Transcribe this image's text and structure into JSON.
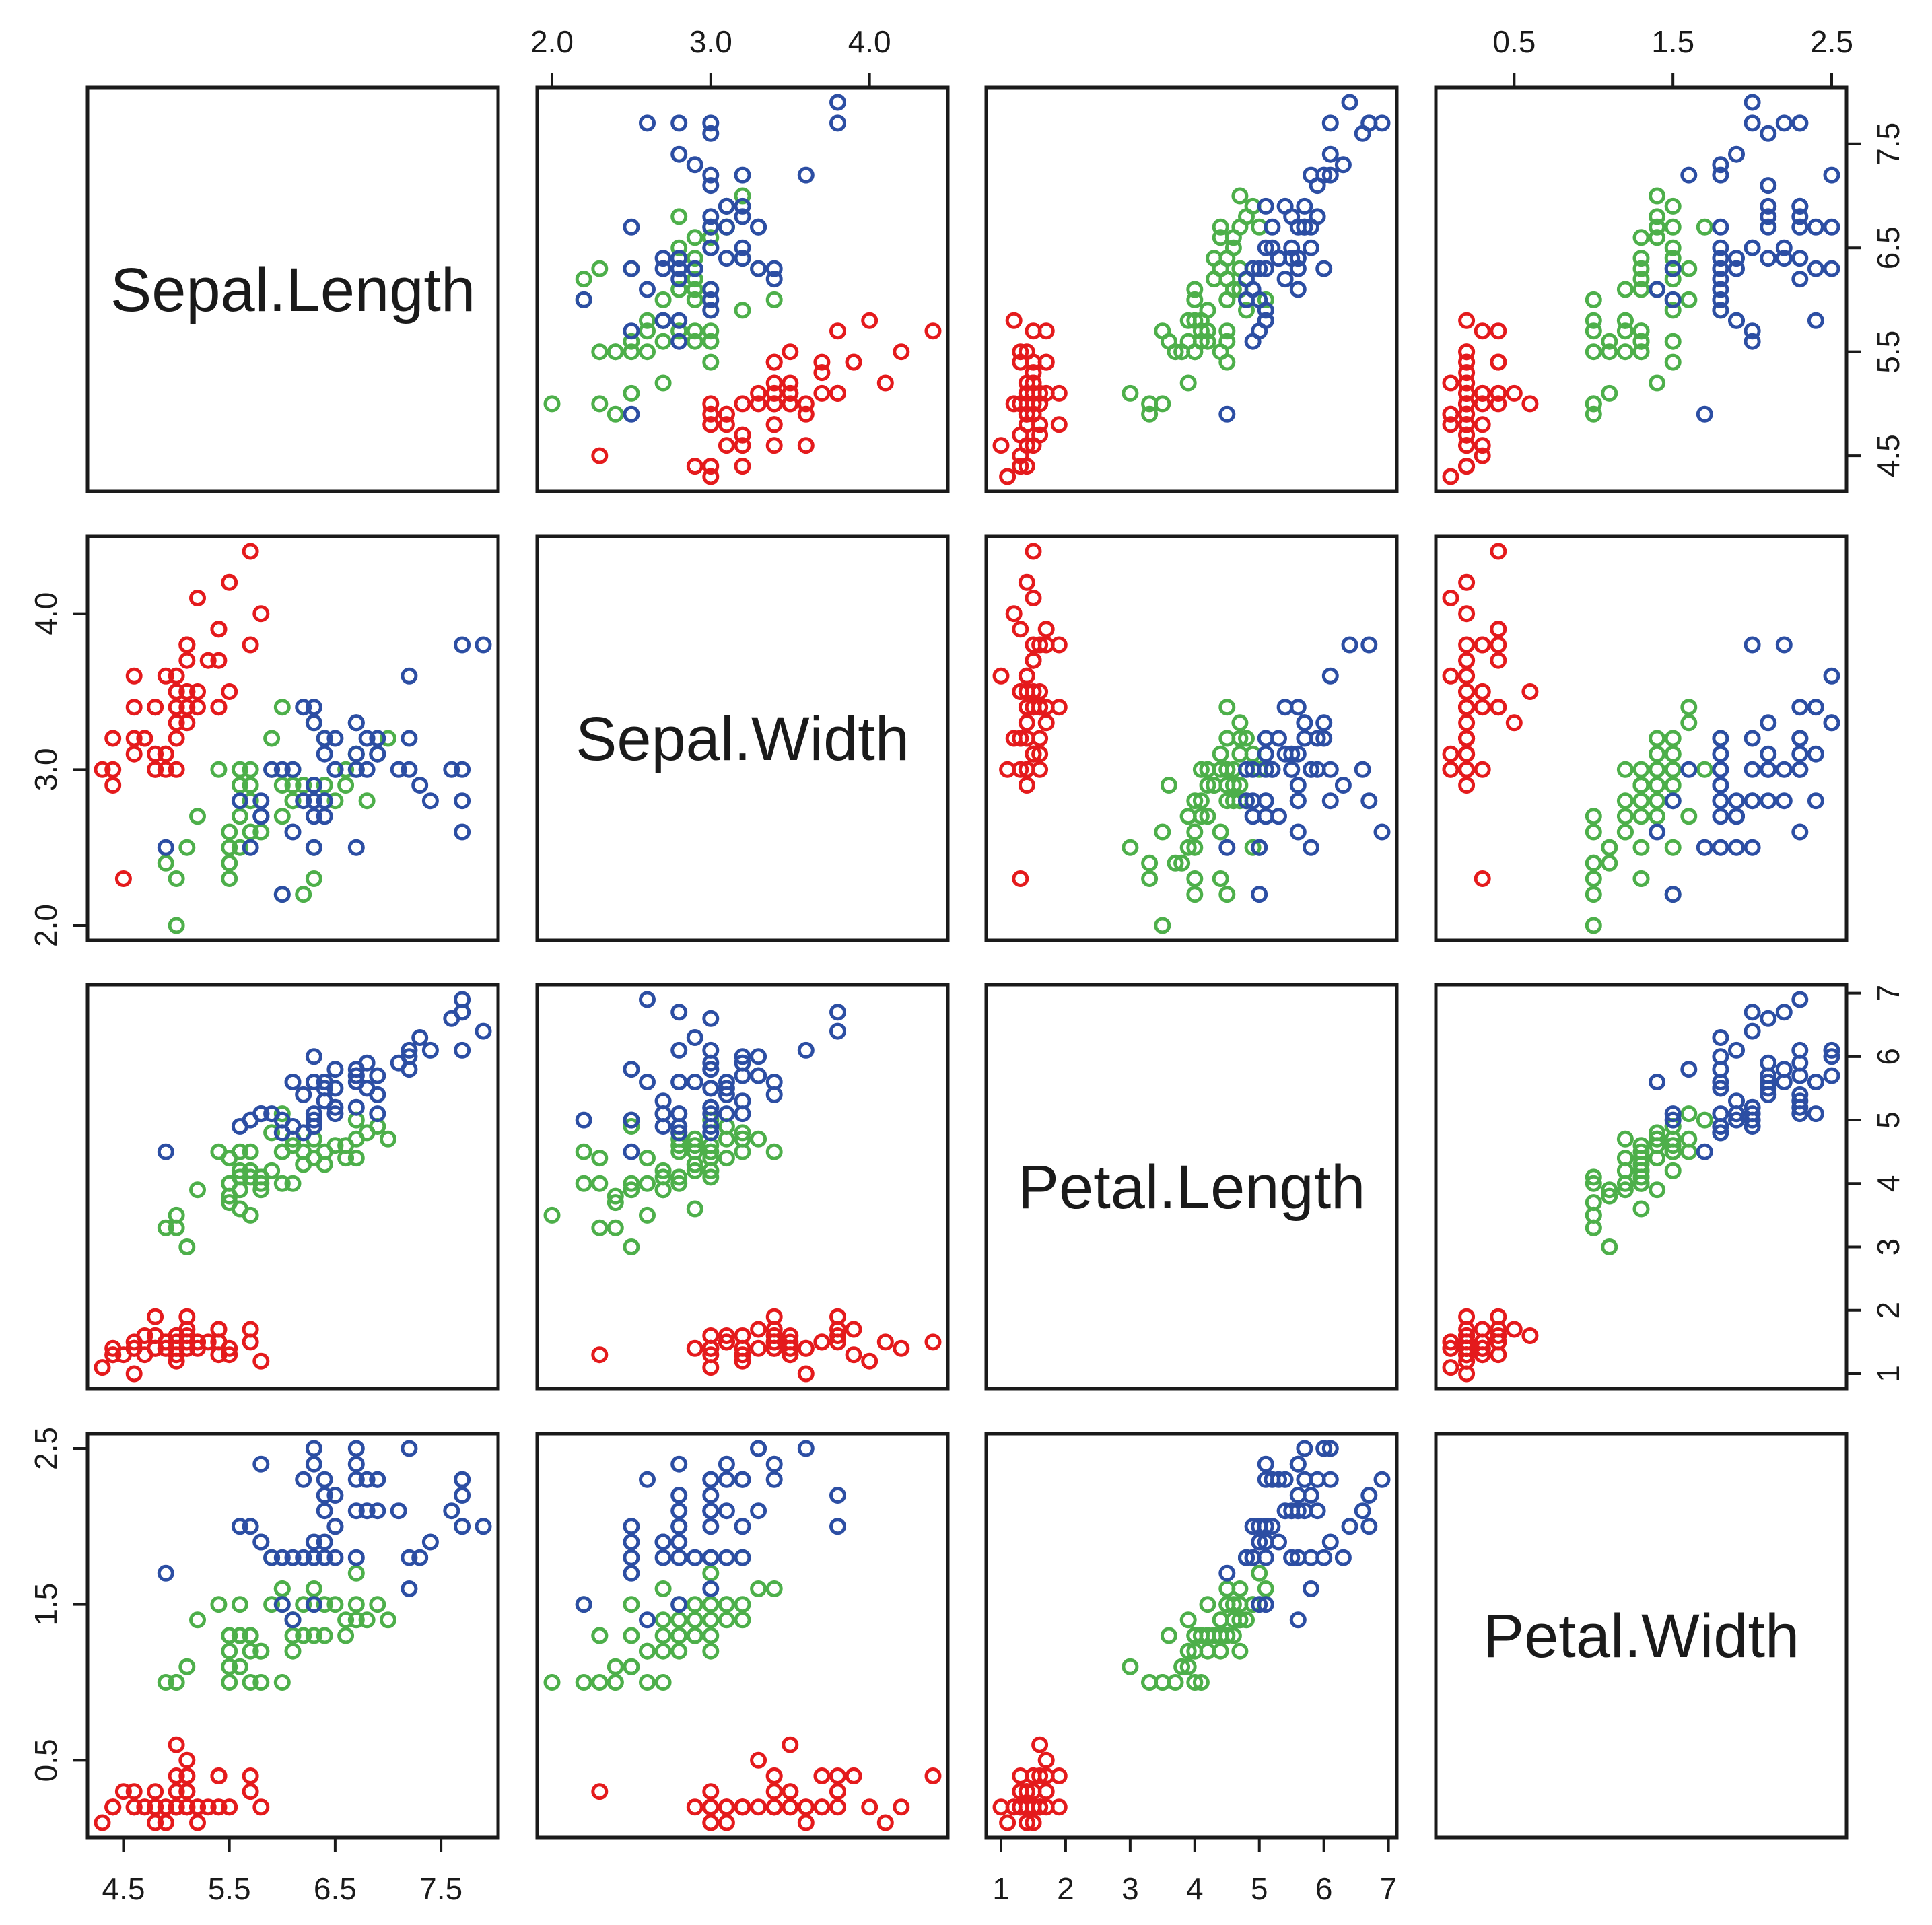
{
  "chart_data": {
    "type": "scatter",
    "title": "",
    "variables": [
      "Sepal.Length",
      "Sepal.Width",
      "Petal.Length",
      "Petal.Width"
    ],
    "ranges": {
      "Sepal.Length": [
        4.3,
        7.9
      ],
      "Sepal.Width": [
        2.0,
        4.4
      ],
      "Petal.Length": [
        1.0,
        6.9
      ],
      "Petal.Width": [
        0.1,
        2.5
      ]
    },
    "ticks": {
      "Sepal.Length": [
        4.5,
        5.5,
        6.5,
        7.5
      ],
      "Sepal.Width": [
        2.0,
        3.0,
        4.0
      ],
      "Petal.Length": [
        1,
        2,
        3,
        4,
        5,
        6,
        7
      ],
      "Petal.Width": [
        0.5,
        1.5,
        2.5
      ]
    },
    "tick_labels": {
      "Sepal.Length": [
        "4.5",
        "5.5",
        "6.5",
        "7.5"
      ],
      "Sepal.Width": [
        "2.0",
        "3.0",
        "4.0"
      ],
      "Petal.Length": [
        "1",
        "2",
        "3",
        "4",
        "5",
        "6",
        "7"
      ],
      "Petal.Width": [
        "0.5",
        "1.5",
        "2.5"
      ]
    },
    "groups": [
      {
        "color": "#e41a1c",
        "points": [
          [
            5.1,
            3.5,
            1.4,
            0.2
          ],
          [
            4.9,
            3.0,
            1.4,
            0.2
          ],
          [
            4.7,
            3.2,
            1.3,
            0.2
          ],
          [
            4.6,
            3.1,
            1.5,
            0.2
          ],
          [
            5.0,
            3.6,
            1.4,
            0.2
          ],
          [
            5.4,
            3.9,
            1.7,
            0.4
          ],
          [
            4.6,
            3.4,
            1.4,
            0.3
          ],
          [
            5.0,
            3.4,
            1.5,
            0.2
          ],
          [
            4.4,
            2.9,
            1.4,
            0.2
          ],
          [
            4.9,
            3.1,
            1.5,
            0.1
          ],
          [
            5.4,
            3.7,
            1.5,
            0.2
          ],
          [
            4.8,
            3.4,
            1.6,
            0.2
          ],
          [
            4.8,
            3.0,
            1.4,
            0.1
          ],
          [
            4.3,
            3.0,
            1.1,
            0.1
          ],
          [
            5.8,
            4.0,
            1.2,
            0.2
          ],
          [
            5.7,
            4.4,
            1.5,
            0.4
          ],
          [
            5.4,
            3.9,
            1.3,
            0.4
          ],
          [
            5.1,
            3.5,
            1.4,
            0.3
          ],
          [
            5.7,
            3.8,
            1.7,
            0.3
          ],
          [
            5.1,
            3.8,
            1.5,
            0.3
          ],
          [
            5.4,
            3.4,
            1.7,
            0.2
          ],
          [
            5.1,
            3.7,
            1.5,
            0.4
          ],
          [
            4.6,
            3.6,
            1.0,
            0.2
          ],
          [
            5.1,
            3.3,
            1.7,
            0.5
          ],
          [
            4.8,
            3.4,
            1.9,
            0.2
          ],
          [
            5.0,
            3.0,
            1.6,
            0.2
          ],
          [
            5.0,
            3.4,
            1.6,
            0.4
          ],
          [
            5.2,
            3.5,
            1.5,
            0.2
          ],
          [
            5.2,
            3.4,
            1.4,
            0.2
          ],
          [
            4.7,
            3.2,
            1.6,
            0.2
          ],
          [
            4.8,
            3.1,
            1.6,
            0.2
          ],
          [
            5.4,
            3.4,
            1.5,
            0.4
          ],
          [
            5.2,
            4.1,
            1.5,
            0.1
          ],
          [
            5.5,
            4.2,
            1.4,
            0.2
          ],
          [
            4.9,
            3.1,
            1.5,
            0.2
          ],
          [
            5.0,
            3.2,
            1.2,
            0.2
          ],
          [
            5.5,
            3.5,
            1.3,
            0.2
          ],
          [
            4.9,
            3.6,
            1.4,
            0.1
          ],
          [
            4.4,
            3.0,
            1.3,
            0.2
          ],
          [
            5.1,
            3.4,
            1.5,
            0.2
          ],
          [
            5.0,
            3.5,
            1.3,
            0.3
          ],
          [
            4.5,
            2.3,
            1.3,
            0.3
          ],
          [
            4.4,
            3.2,
            1.3,
            0.2
          ],
          [
            5.0,
            3.5,
            1.6,
            0.6
          ],
          [
            5.1,
            3.8,
            1.9,
            0.4
          ],
          [
            4.8,
            3.0,
            1.4,
            0.3
          ],
          [
            5.1,
            3.8,
            1.6,
            0.2
          ],
          [
            4.6,
            3.2,
            1.4,
            0.2
          ],
          [
            5.3,
            3.7,
            1.5,
            0.2
          ],
          [
            5.0,
            3.3,
            1.4,
            0.2
          ]
        ]
      },
      {
        "color": "#4daf4a",
        "points": [
          [
            7.0,
            3.2,
            4.7,
            1.4
          ],
          [
            6.4,
            3.2,
            4.5,
            1.5
          ],
          [
            6.9,
            3.1,
            4.9,
            1.5
          ],
          [
            5.5,
            2.3,
            4.0,
            1.3
          ],
          [
            6.5,
            2.8,
            4.6,
            1.5
          ],
          [
            5.7,
            2.8,
            4.5,
            1.3
          ],
          [
            6.3,
            3.3,
            4.7,
            1.6
          ],
          [
            4.9,
            2.4,
            3.3,
            1.0
          ],
          [
            6.6,
            2.9,
            4.6,
            1.3
          ],
          [
            5.2,
            2.7,
            3.9,
            1.4
          ],
          [
            5.0,
            2.0,
            3.5,
            1.0
          ],
          [
            5.9,
            3.0,
            4.2,
            1.5
          ],
          [
            6.0,
            2.2,
            4.0,
            1.0
          ],
          [
            6.1,
            2.9,
            4.7,
            1.4
          ],
          [
            5.6,
            2.9,
            3.6,
            1.3
          ],
          [
            6.7,
            3.1,
            4.4,
            1.4
          ],
          [
            5.6,
            3.0,
            4.5,
            1.5
          ],
          [
            5.8,
            2.7,
            4.1,
            1.0
          ],
          [
            6.2,
            2.2,
            4.5,
            1.5
          ],
          [
            5.6,
            2.5,
            3.9,
            1.1
          ],
          [
            5.9,
            3.2,
            4.8,
            1.8
          ],
          [
            6.1,
            2.8,
            4.0,
            1.3
          ],
          [
            6.3,
            2.5,
            4.9,
            1.5
          ],
          [
            6.1,
            2.8,
            4.7,
            1.2
          ],
          [
            6.4,
            2.9,
            4.3,
            1.3
          ],
          [
            6.6,
            3.0,
            4.4,
            1.4
          ],
          [
            6.8,
            2.8,
            4.8,
            1.4
          ],
          [
            6.7,
            3.0,
            5.0,
            1.7
          ],
          [
            6.0,
            2.9,
            4.5,
            1.5
          ],
          [
            5.7,
            2.6,
            3.5,
            1.0
          ],
          [
            5.5,
            2.4,
            3.8,
            1.1
          ],
          [
            5.5,
            2.4,
            3.7,
            1.0
          ],
          [
            5.8,
            2.7,
            3.9,
            1.2
          ],
          [
            6.0,
            2.7,
            5.1,
            1.6
          ],
          [
            5.4,
            3.0,
            4.5,
            1.5
          ],
          [
            6.0,
            3.4,
            4.5,
            1.6
          ],
          [
            6.7,
            3.1,
            4.7,
            1.5
          ],
          [
            6.3,
            2.3,
            4.4,
            1.3
          ],
          [
            5.6,
            3.0,
            4.1,
            1.3
          ],
          [
            5.5,
            2.5,
            4.0,
            1.3
          ],
          [
            5.5,
            2.6,
            4.4,
            1.2
          ],
          [
            6.1,
            3.0,
            4.6,
            1.4
          ],
          [
            5.8,
            2.6,
            4.0,
            1.2
          ],
          [
            5.0,
            2.3,
            3.3,
            1.0
          ],
          [
            5.6,
            2.7,
            4.2,
            1.3
          ],
          [
            5.7,
            3.0,
            4.2,
            1.2
          ],
          [
            5.7,
            2.9,
            4.2,
            1.3
          ],
          [
            6.2,
            2.9,
            4.3,
            1.3
          ],
          [
            5.1,
            2.5,
            3.0,
            1.1
          ],
          [
            5.7,
            2.8,
            4.1,
            1.3
          ]
        ]
      },
      {
        "color": "#2c4ea3",
        "points": [
          [
            6.3,
            3.3,
            6.0,
            2.5
          ],
          [
            5.8,
            2.7,
            5.1,
            1.9
          ],
          [
            7.1,
            3.0,
            5.9,
            2.1
          ],
          [
            6.3,
            2.9,
            5.6,
            1.8
          ],
          [
            6.5,
            3.0,
            5.8,
            2.2
          ],
          [
            7.6,
            3.0,
            6.6,
            2.1
          ],
          [
            4.9,
            2.5,
            4.5,
            1.7
          ],
          [
            7.3,
            2.9,
            6.3,
            1.8
          ],
          [
            6.7,
            2.5,
            5.8,
            1.8
          ],
          [
            7.2,
            3.6,
            6.1,
            2.5
          ],
          [
            6.5,
            3.2,
            5.1,
            2.0
          ],
          [
            6.4,
            2.7,
            5.3,
            1.9
          ],
          [
            6.8,
            3.0,
            5.5,
            2.1
          ],
          [
            5.7,
            2.5,
            5.0,
            2.0
          ],
          [
            5.8,
            2.8,
            5.1,
            2.4
          ],
          [
            6.4,
            3.2,
            5.3,
            2.3
          ],
          [
            6.5,
            3.0,
            5.5,
            1.8
          ],
          [
            7.7,
            3.8,
            6.7,
            2.2
          ],
          [
            7.7,
            2.6,
            6.9,
            2.3
          ],
          [
            6.0,
            2.2,
            5.0,
            1.5
          ],
          [
            6.9,
            3.2,
            5.7,
            2.3
          ],
          [
            5.6,
            2.8,
            4.9,
            2.0
          ],
          [
            7.7,
            2.8,
            6.7,
            2.0
          ],
          [
            6.3,
            2.7,
            4.9,
            1.8
          ],
          [
            6.7,
            3.3,
            5.7,
            2.1
          ],
          [
            7.2,
            3.2,
            6.0,
            1.8
          ],
          [
            6.2,
            2.8,
            4.8,
            1.8
          ],
          [
            6.1,
            3.0,
            4.9,
            1.8
          ],
          [
            6.4,
            2.8,
            5.6,
            2.1
          ],
          [
            7.2,
            3.0,
            5.8,
            1.6
          ],
          [
            7.4,
            2.8,
            6.1,
            1.9
          ],
          [
            7.9,
            3.8,
            6.4,
            2.0
          ],
          [
            6.4,
            2.8,
            5.6,
            2.2
          ],
          [
            6.3,
            2.8,
            5.1,
            1.5
          ],
          [
            6.1,
            2.6,
            5.6,
            1.4
          ],
          [
            7.7,
            3.0,
            6.1,
            2.3
          ],
          [
            6.3,
            3.4,
            5.6,
            2.4
          ],
          [
            6.4,
            3.1,
            5.5,
            1.8
          ],
          [
            6.0,
            3.0,
            4.8,
            1.8
          ],
          [
            6.9,
            3.1,
            5.4,
            2.1
          ],
          [
            6.7,
            3.1,
            5.6,
            2.4
          ],
          [
            6.9,
            3.1,
            5.1,
            2.3
          ],
          [
            5.8,
            2.7,
            5.1,
            1.9
          ],
          [
            6.8,
            3.2,
            5.9,
            2.3
          ],
          [
            6.7,
            3.3,
            5.7,
            2.5
          ],
          [
            6.7,
            3.0,
            5.2,
            2.3
          ],
          [
            6.3,
            2.5,
            5.0,
            1.9
          ],
          [
            6.5,
            3.0,
            5.2,
            2.0
          ],
          [
            6.2,
            3.4,
            5.4,
            2.3
          ],
          [
            5.9,
            3.0,
            5.1,
            1.8
          ]
        ]
      }
    ]
  }
}
